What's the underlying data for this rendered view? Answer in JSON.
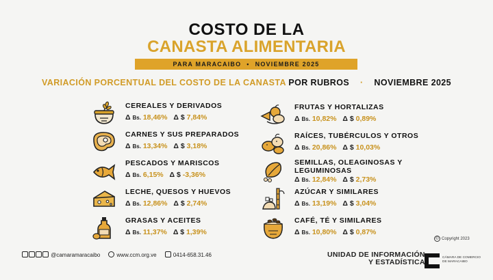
{
  "header": {
    "title_line1": "COSTO DE LA",
    "title_line2": "CANASTA ALIMENTARIA",
    "band_left": "PARA MARACAIBO",
    "band_sep": "•",
    "band_right": "NOVIEMBRE 2025"
  },
  "subtitle": {
    "part1": "VARIACIÓN PORCENTUAL DEL COSTO DE LA CANASTA",
    "part2": "POR RUBROS",
    "sep": "·",
    "part3": "NOVIEMBRE 2025"
  },
  "labels": {
    "bs_prefix": "Δ",
    "bs_unit": "Bs.",
    "usd": "Δ $"
  },
  "items": [
    {
      "name": "CEREALES Y DERIVADOS",
      "bs": "18,46%",
      "usd": "7,84%",
      "icon": "wheat-sack-icon"
    },
    {
      "name": "CARNES Y SUS PREPARADOS",
      "bs": "13,34%",
      "usd": "3,18%",
      "icon": "steak-icon"
    },
    {
      "name": "PESCADOS Y MARISCOS",
      "bs": "6,15%",
      "usd": "-3,36%",
      "icon": "fish-icon"
    },
    {
      "name": "LECHE, QUESOS Y HUEVOS",
      "bs": "12,86%",
      "usd": "2,74%",
      "icon": "cheese-icon"
    },
    {
      "name": "GRASAS Y ACEITES",
      "bs": "11,37%",
      "usd": "1,39%",
      "icon": "oil-bottle-icon"
    },
    {
      "name": "FRUTAS Y HORTALIZAS",
      "bs": "10,82%",
      "usd": "0,89%",
      "icon": "vegetables-icon"
    },
    {
      "name": "RAÍCES, TUBÉRCULOS Y OTROS",
      "bs": "20,86%",
      "usd": "10,03%",
      "icon": "potatoes-icon"
    },
    {
      "name": "SEMILLAS, OLEAGINOSAS Y",
      "name2": "LEGUMINOSAS",
      "bs": "12,84%",
      "usd": "2,73%",
      "icon": "seeds-icon"
    },
    {
      "name": "AZÚCAR Y SIMILARES",
      "bs": "13,19%",
      "usd": "3,04%",
      "icon": "sugarcane-icon"
    },
    {
      "name": "CAFÉ, TÉ Y SIMILARES",
      "bs": "10,80%",
      "usd": "0,87%",
      "icon": "coffee-sack-icon"
    }
  ],
  "copyright": "Copyright 2023",
  "footer": {
    "social": "@camaramaracaibo",
    "web": "www.ccm.org.ve",
    "phone": "0414-658.31.46"
  },
  "unit": {
    "line1": "UNIDAD DE INFORMACIÓN",
    "line2": "Y ESTADÍSTICA"
  },
  "chamber": {
    "line1": "CÁMARA DE COMERCIO",
    "line2": "DE MARACAIBO"
  },
  "colors": {
    "gold": "#dfa329",
    "dark": "#111111",
    "background": "#f5f5f3"
  }
}
